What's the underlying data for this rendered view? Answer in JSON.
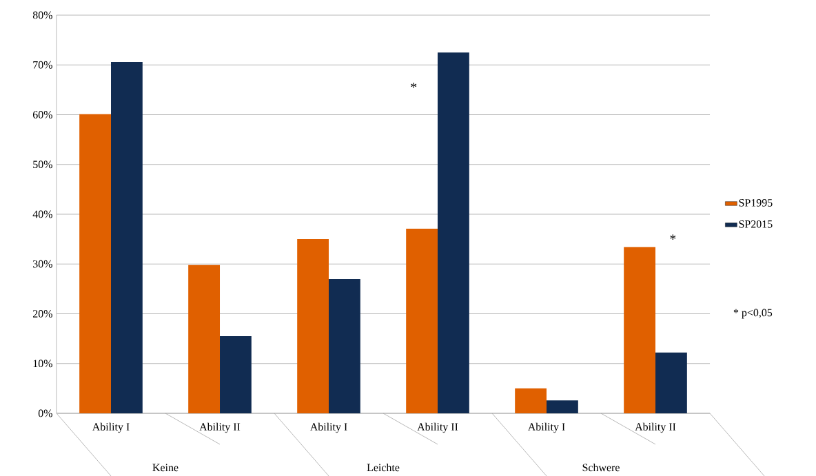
{
  "chart_data": {
    "type": "bar",
    "categories": [
      "Ability I",
      "Ability II",
      "Ability I",
      "Ability II",
      "Ability I",
      "Ability II"
    ],
    "series": [
      {
        "name": "SP1995",
        "color": "#e06000",
        "values": [
          60.1,
          29.8,
          35.0,
          37.1,
          5.0,
          33.4
        ]
      },
      {
        "name": "SP2015",
        "color": "#112c52",
        "values": [
          70.6,
          15.5,
          27.0,
          72.5,
          2.6,
          12.2
        ]
      }
    ],
    "ylim": [
      0,
      80
    ],
    "yticks": [
      {
        "value": 0,
        "label": "0%"
      },
      {
        "value": 10,
        "label": "10%"
      },
      {
        "value": 20,
        "label": "20%"
      },
      {
        "value": 30,
        "label": "30%"
      },
      {
        "value": 40,
        "label": "40%"
      },
      {
        "value": 50,
        "label": "50%"
      },
      {
        "value": 60,
        "label": "60%"
      },
      {
        "value": 70,
        "label": "70%"
      },
      {
        "value": 80,
        "label": "80%"
      }
    ],
    "grid": "y",
    "legend": "right",
    "annotations": [
      "Keine",
      "Leichte",
      "Schwere",
      "*",
      "*",
      "* p<0,05"
    ]
  }
}
